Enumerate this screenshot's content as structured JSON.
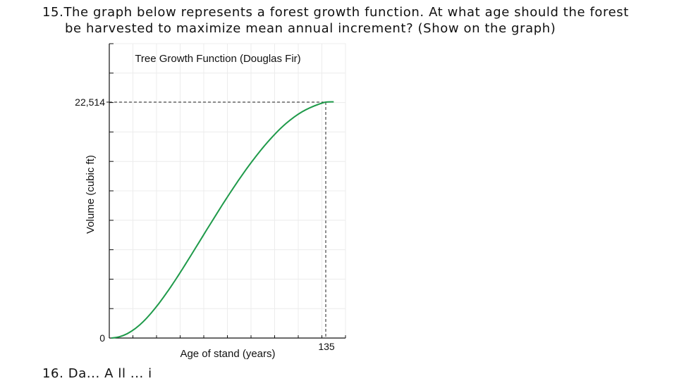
{
  "question": {
    "number": "15.",
    "line1": "The graph below represents a forest growth function. At what age should the forest",
    "line2": "be harvested to maximize mean annual increment? (Show on the graph)"
  },
  "next_question_fragment": "16. Da... A ll ... i",
  "chart_data": {
    "type": "line",
    "title": "Tree Growth Function (Douglas Fir)",
    "xlabel": "Age of stand (years)",
    "ylabel": "Volume (cubic ft)",
    "xlim": [
      0,
      143
    ],
    "ylim": [
      0,
      27000
    ],
    "x_tick_labels": [
      {
        "x": 135,
        "label": "135"
      }
    ],
    "y_tick_labels": [
      {
        "y": 0,
        "label": "0"
      },
      {
        "y": 22514,
        "label": "22,514"
      }
    ],
    "grid": true,
    "reference_lines": [
      {
        "type": "horizontal",
        "y": 22514,
        "style": "dashed"
      },
      {
        "type": "vertical",
        "x": 135,
        "style": "dashed"
      }
    ],
    "series": [
      {
        "color": "#1f9a4a",
        "x": [
          0,
          5,
          10,
          15,
          20,
          25,
          30,
          35,
          40,
          45,
          50,
          55,
          60,
          65,
          70,
          75,
          80,
          85,
          90,
          95,
          100,
          105,
          110,
          115,
          120,
          125,
          130,
          135,
          140
        ],
        "y": [
          0,
          120,
          420,
          900,
          1560,
          2380,
          3320,
          4360,
          5480,
          6650,
          7860,
          9090,
          10320,
          11540,
          12740,
          13910,
          15040,
          16120,
          17140,
          18090,
          18970,
          19770,
          20480,
          21080,
          21580,
          21970,
          22280,
          22514,
          22540
        ]
      }
    ]
  }
}
